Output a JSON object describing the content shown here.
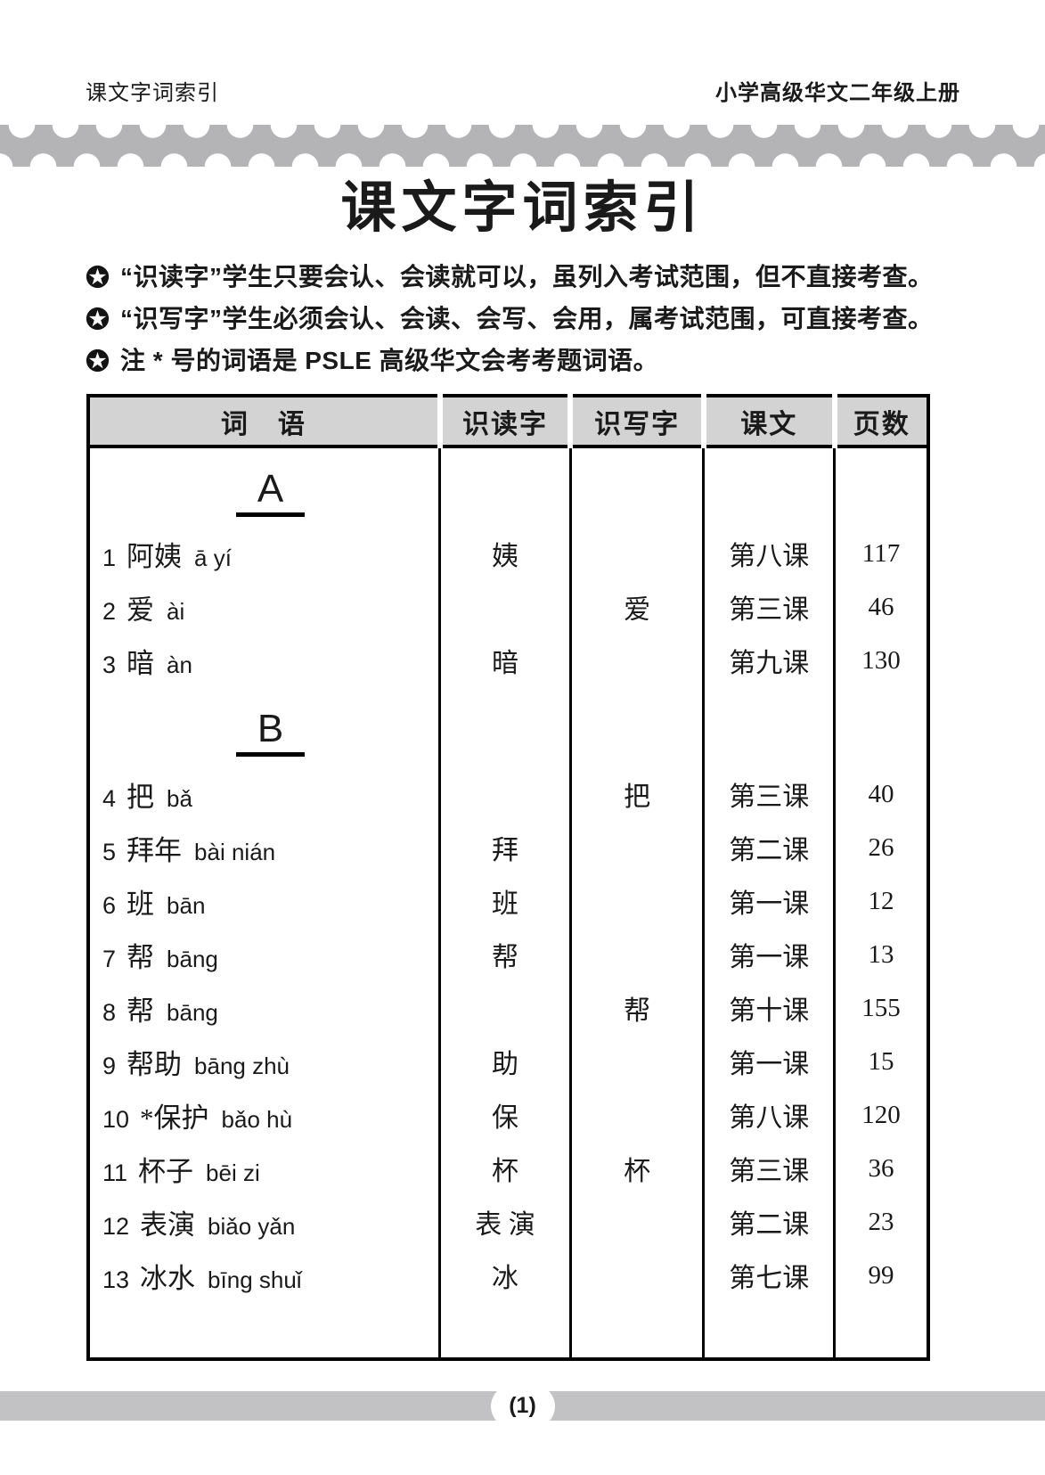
{
  "page_header": {
    "left": "课文字词索引",
    "right": "小学高级华文二年级上册"
  },
  "title": "课文字词索引",
  "notes": [
    {
      "icon": "star-in-circle",
      "text": "“识读字”学生只要会认、会读就可以，虽列入考试范围，但不直接考查。"
    },
    {
      "icon": "star-in-circle",
      "text": "“识写字”学生必须会认、会读、会写、会用，属考试范围，可直接考查。"
    },
    {
      "icon": "star-in-circle",
      "text": "注 * 号的词语是 PSLE 高级华文会考考题词语。"
    }
  ],
  "table": {
    "columns": [
      "词　语",
      "识读字",
      "识写字",
      "课文",
      "页数"
    ],
    "rows": [
      {
        "type": "section",
        "label": "A"
      },
      {
        "type": "entry",
        "num": "1",
        "word": "阿姨",
        "pinyin": "ā yí",
        "recognize": "姨",
        "write": "",
        "lesson": "第八课",
        "page": "117"
      },
      {
        "type": "entry",
        "num": "2",
        "word": "爱",
        "pinyin": "ài",
        "recognize": "",
        "write": "爱",
        "lesson": "第三课",
        "page": "46"
      },
      {
        "type": "entry",
        "num": "3",
        "word": "暗",
        "pinyin": "àn",
        "recognize": "暗",
        "write": "",
        "lesson": "第九课",
        "page": "130"
      },
      {
        "type": "section",
        "label": "B"
      },
      {
        "type": "entry",
        "num": "4",
        "word": "把",
        "pinyin": "bǎ",
        "recognize": "",
        "write": "把",
        "lesson": "第三课",
        "page": "40"
      },
      {
        "type": "entry",
        "num": "5",
        "word": "拜年",
        "pinyin": "bài nián",
        "recognize": "拜",
        "write": "",
        "lesson": "第二课",
        "page": "26"
      },
      {
        "type": "entry",
        "num": "6",
        "word": "班",
        "pinyin": "bān",
        "recognize": "班",
        "write": "",
        "lesson": "第一课",
        "page": "12"
      },
      {
        "type": "entry",
        "num": "7",
        "word": "帮",
        "pinyin": "bāng",
        "recognize": "帮",
        "write": "",
        "lesson": "第一课",
        "page": "13"
      },
      {
        "type": "entry",
        "num": "8",
        "word": "帮",
        "pinyin": "bāng",
        "recognize": "",
        "write": "帮",
        "lesson": "第十课",
        "page": "155"
      },
      {
        "type": "entry",
        "num": "9",
        "word": "帮助",
        "pinyin": "bāng zhù",
        "recognize": "助",
        "write": "",
        "lesson": "第一课",
        "page": "15"
      },
      {
        "type": "entry",
        "num": "10",
        "word": "*保护",
        "pinyin": "bǎo hù",
        "recognize": "保",
        "write": "",
        "lesson": "第八课",
        "page": "120"
      },
      {
        "type": "entry",
        "num": "11",
        "word": "杯子",
        "pinyin": "bēi zi",
        "recognize": "杯",
        "write": "杯",
        "lesson": "第三课",
        "page": "36"
      },
      {
        "type": "entry",
        "num": "12",
        "word": "表演",
        "pinyin": "biǎo yǎn",
        "recognize": "表 演",
        "write": "",
        "lesson": "第二课",
        "page": "23"
      },
      {
        "type": "entry",
        "num": "13",
        "word": "冰水",
        "pinyin": "bīng shuǐ",
        "recognize": "冰",
        "write": "",
        "lesson": "第七课",
        "page": "99"
      }
    ]
  },
  "footer": {
    "page_label": "(1)"
  },
  "colors": {
    "band_gray": "#b4b4b6",
    "table_header_gray": "#d3d3d3",
    "footer_gray": "#c2c2c4",
    "text_black": "#1a1a1a"
  }
}
